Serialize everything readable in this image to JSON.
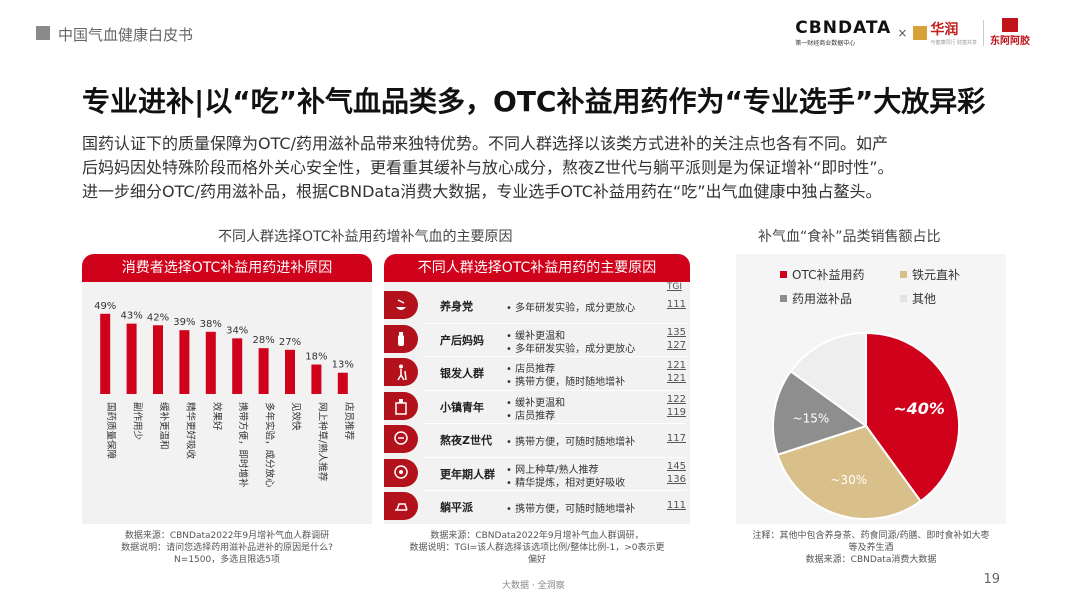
{
  "header": {
    "text": "中国气血健康白皮书"
  },
  "logos": {
    "cbn_main": "CBNDATA",
    "cbn_sub": "第一财经商业数据中心",
    "x": "×",
    "hua": "华润",
    "hua_sub": "与健康同行 财富共享",
    "dong": "东阿阿胶"
  },
  "title": "专业进补|以“吃”补气血品类多，OTC补益用药作为“专业选手”大放异彩",
  "intro": [
    "国药认证下的质量保障为OTC/药用滋补品带来独特优势。不同人群选择以该类方式进补的关注点也各有不同。如产",
    "后妈妈因处特殊阶段而格外关心安全性，更看重其缓补与放心成分，熬夜Z世代与躺平派则是为保证增补“即时性”。",
    "进一步细分OTC/药用滋补品，根据CBNData消费大数据，专业选手OTC补益用药在“吃”出气血健康中独占鳌头。"
  ],
  "left_caption": "不同人群选择OTC补益用药增补气血的主要原因",
  "right_caption": "补气血“食补”品类销售额占比",
  "bar_panel": {
    "header": "消费者选择OTC补益用药进补原因",
    "note": [
      "数据来源：CBNData2022年9月增补气血人群调研",
      "数据说明：请问您选择药用滋补品进补的原因是什么?",
      "N=1500，多选且限选5项"
    ]
  },
  "table_panel": {
    "header": "不同人群选择OTC补益用药的主要原因",
    "tgi_label": "TGI",
    "note": [
      "数据来源：CBNData2022年9月增补气血人群调研，",
      "数据说明：TGI=该人群选择该选项比例/整体比例-1，>0表示更",
      "偏好"
    ],
    "rows": [
      {
        "icon": "tea-icon",
        "name": "养身党",
        "reasons": [
          {
            "text": "多年研发实验，成分更放心",
            "tgi": "111"
          }
        ]
      },
      {
        "icon": "bottle-icon",
        "name": "产后妈妈",
        "reasons": [
          {
            "text": "缓补更温和",
            "tgi": "135"
          },
          {
            "text": "多年研发实验，成分更放心",
            "tgi": "127"
          }
        ]
      },
      {
        "icon": "cane-icon",
        "name": "银发人群",
        "reasons": [
          {
            "text": "店员推荐",
            "tgi": "121"
          },
          {
            "text": "携带方便，随时随地增补",
            "tgi": "121"
          }
        ]
      },
      {
        "icon": "building-icon",
        "name": "小镇青年",
        "reasons": [
          {
            "text": "缓补更温和",
            "tgi": "122"
          },
          {
            "text": "店员推荐",
            "tgi": "119"
          }
        ]
      },
      {
        "icon": "head-icon",
        "name": "熬夜Z世代",
        "reasons": [
          {
            "text": "携带方便，可随时随地增补",
            "tgi": "117"
          }
        ]
      },
      {
        "icon": "gear-head-icon",
        "name": "更年期人群",
        "reasons": [
          {
            "text": "网上种草/熟人推荐",
            "tgi": "145"
          },
          {
            "text": "精华提炼，相对更好吸收",
            "tgi": "136"
          }
        ]
      },
      {
        "icon": "lounger-icon",
        "name": "躺平派",
        "reasons": [
          {
            "text": "携带方便，可随时随地增补",
            "tgi": "111"
          }
        ]
      }
    ]
  },
  "pie_panel": {
    "legend": [
      {
        "label": "OTC补益用药",
        "color": "#d0021b"
      },
      {
        "label": "铁元直补",
        "color": "#d9c08a"
      },
      {
        "label": "药用滋补品",
        "color": "#8e8e8e"
      },
      {
        "label": "其他",
        "color": "#eeeeee"
      }
    ],
    "slice_labels": [
      "~40%",
      "~30%",
      "~15%"
    ],
    "note": [
      "注释：其他中包含养身茶、药食同源/药膳、即时食补如大枣",
      "等及养生酒",
      "数据来源：CBNData消费大数据"
    ]
  },
  "chart_data": [
    {
      "type": "bar",
      "title": "消费者选择OTC补益用药进补原因",
      "categories": [
        "国药质量保障",
        "副作用少",
        "缓补更温和",
        "精华更好吸收",
        "效果好",
        "携带方便，即时增补",
        "多年实验，成分放心",
        "见效快",
        "网上种草/熟人推荐",
        "店员推荐"
      ],
      "values": [
        49,
        43,
        42,
        39,
        38,
        34,
        28,
        27,
        18,
        13
      ],
      "value_labels": [
        "49%",
        "43%",
        "42%",
        "39%",
        "38%",
        "34%",
        "28%",
        "27%",
        "18%",
        "13%"
      ],
      "color": "#d0021b",
      "ylim": [
        0,
        55
      ]
    },
    {
      "type": "pie",
      "title": "补气血“食补”品类销售额占比",
      "categories": [
        "OTC补益用药",
        "铁元直补",
        "药用滋补品",
        "其他"
      ],
      "values": [
        40,
        30,
        15,
        15
      ],
      "colors": [
        "#d0021b",
        "#d9c08a",
        "#8e8e8e",
        "#eeeeee"
      ]
    }
  ],
  "footer": {
    "text": "大数据 · 全洞察",
    "page": "19"
  }
}
